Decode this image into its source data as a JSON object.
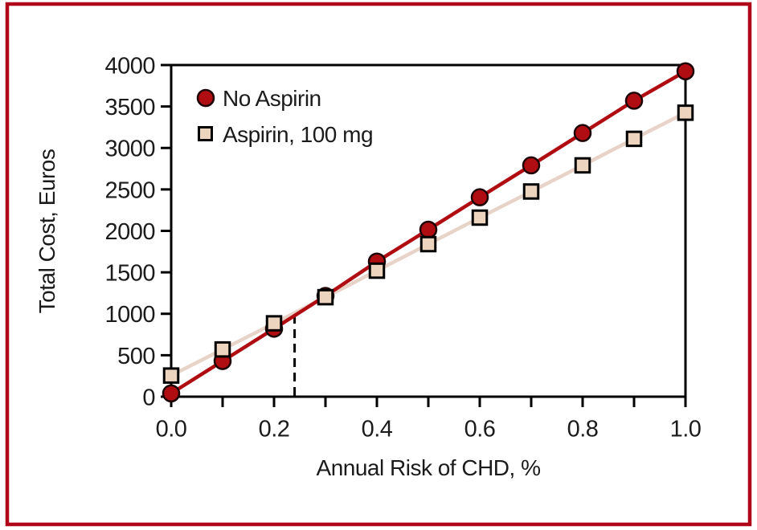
{
  "figure": {
    "border_color": "#b00418",
    "background": "#ffffff",
    "axis_color": "#000000",
    "text_color": "#1b1b1b"
  },
  "chart_data": {
    "type": "line",
    "title": "",
    "xlabel": "Annual Risk of CHD, %",
    "ylabel": "Total Cost, Euros",
    "x": [
      0.0,
      0.1,
      0.2,
      0.3,
      0.4,
      0.5,
      0.6,
      0.7,
      0.8,
      0.9,
      1.0
    ],
    "series": [
      {
        "name": "No Aspirin",
        "marker": "circle",
        "color": "#b00d12",
        "marker_fill": "#b00d12",
        "marker_stroke": "#1e0404",
        "values": [
          40,
          430,
          820,
          1215,
          1630,
          2015,
          2405,
          2790,
          3180,
          3570,
          3925
        ]
      },
      {
        "name": "Aspirin, 100 mg",
        "marker": "square",
        "color": "#e8d3c8",
        "marker_fill": "#ecd4bf",
        "marker_stroke": "#000000",
        "values": [
          255,
          570,
          885,
          1200,
          1520,
          1840,
          2160,
          2475,
          2790,
          3110,
          3425
        ]
      }
    ],
    "xlim": [
      0.0,
      1.0
    ],
    "ylim": [
      0,
      4000
    ],
    "grid": false,
    "legend_position": "top-left-inside",
    "yticks": {
      "values": [
        0,
        500,
        1000,
        1500,
        2000,
        2500,
        3000,
        3500,
        4000
      ],
      "labels": [
        "0",
        "500",
        "1000",
        "1500",
        "2000",
        "2500",
        "3000",
        "3500",
        "4000"
      ]
    },
    "xticks_minor": [
      0.0,
      0.1,
      0.2,
      0.3,
      0.4,
      0.5,
      0.6,
      0.7,
      0.8,
      0.9,
      1.0
    ],
    "xticks_labeled": [
      {
        "value": 0.0,
        "label": "0.0"
      },
      {
        "value": 0.2,
        "label": "0.2"
      },
      {
        "value": 0.4,
        "label": "0.4"
      },
      {
        "value": 0.6,
        "label": "0.6"
      },
      {
        "value": 0.8,
        "label": "0.8"
      },
      {
        "value": 1.0,
        "label": "1.0"
      }
    ],
    "annotations": [
      {
        "type": "vline-dashed",
        "x": 0.24,
        "y_bottom": 0,
        "y_top": 975,
        "color": "#000000"
      }
    ]
  }
}
